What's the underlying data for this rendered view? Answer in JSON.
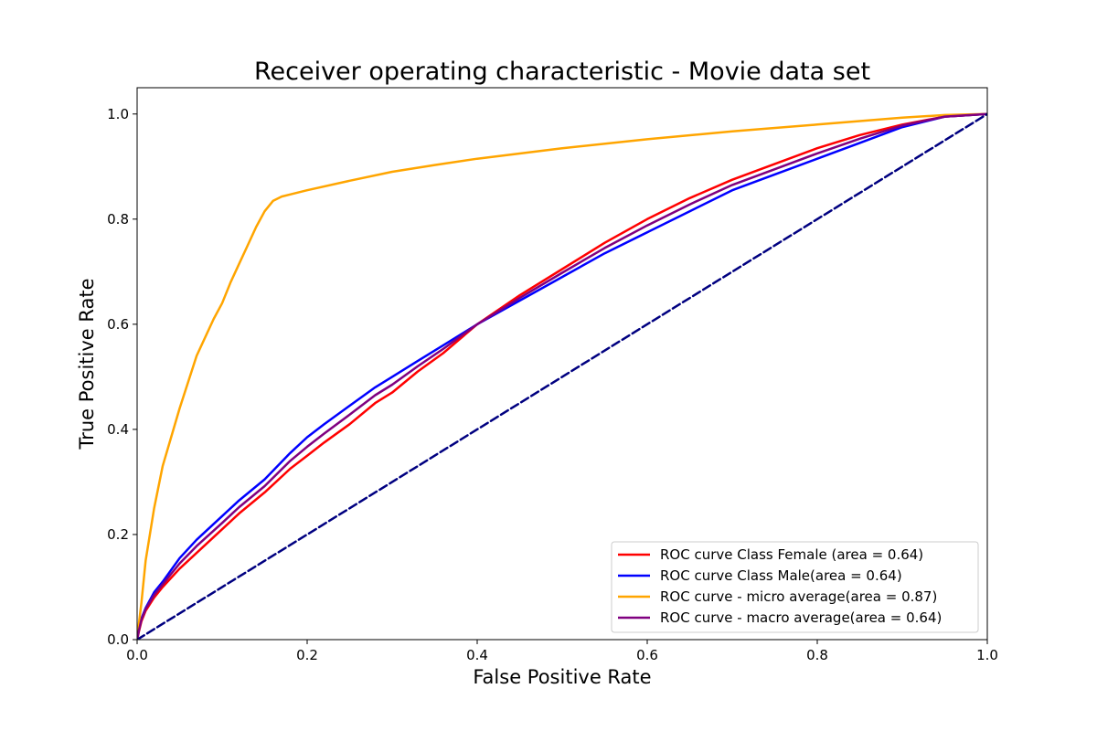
{
  "chart_data": {
    "type": "line",
    "title": "Receiver operating characteristic - Movie data set",
    "xlabel": "False Positive Rate",
    "ylabel": "True Positive Rate",
    "xlim": [
      0.0,
      1.0
    ],
    "ylim": [
      0.0,
      1.05
    ],
    "xticks": [
      0.0,
      0.2,
      0.4,
      0.6,
      0.8,
      1.0
    ],
    "xtick_labels": [
      "0.0",
      "0.2",
      "0.4",
      "0.6",
      "0.8",
      "1.0"
    ],
    "yticks": [
      0.0,
      0.2,
      0.4,
      0.6,
      0.8,
      1.0
    ],
    "ytick_labels": [
      "0.0",
      "0.2",
      "0.4",
      "0.6",
      "0.8",
      "1.0"
    ],
    "grid": false,
    "legend_position": "lower-right",
    "series": [
      {
        "name": "ROC curve Class Female (area = 0.64)",
        "color": "#ff0000",
        "style": "solid",
        "x": [
          0.0,
          0.002,
          0.005,
          0.01,
          0.02,
          0.03,
          0.05,
          0.07,
          0.1,
          0.12,
          0.15,
          0.18,
          0.2,
          0.22,
          0.25,
          0.28,
          0.3,
          0.33,
          0.36,
          0.4,
          0.45,
          0.5,
          0.55,
          0.6,
          0.65,
          0.7,
          0.75,
          0.8,
          0.85,
          0.9,
          0.95,
          1.0
        ],
        "y": [
          0.0,
          0.015,
          0.035,
          0.055,
          0.08,
          0.1,
          0.135,
          0.165,
          0.21,
          0.24,
          0.28,
          0.325,
          0.35,
          0.375,
          0.41,
          0.45,
          0.47,
          0.51,
          0.545,
          0.6,
          0.655,
          0.705,
          0.755,
          0.8,
          0.84,
          0.875,
          0.905,
          0.935,
          0.96,
          0.98,
          0.995,
          1.0
        ]
      },
      {
        "name": "ROC curve Class Male(area = 0.64)",
        "color": "#0000ff",
        "style": "solid",
        "x": [
          0.0,
          0.002,
          0.005,
          0.01,
          0.02,
          0.03,
          0.05,
          0.07,
          0.1,
          0.12,
          0.15,
          0.18,
          0.2,
          0.22,
          0.25,
          0.28,
          0.3,
          0.33,
          0.36,
          0.4,
          0.45,
          0.5,
          0.55,
          0.6,
          0.65,
          0.7,
          0.75,
          0.8,
          0.85,
          0.9,
          0.95,
          1.0
        ],
        "y": [
          0.0,
          0.02,
          0.04,
          0.06,
          0.09,
          0.11,
          0.155,
          0.19,
          0.235,
          0.265,
          0.305,
          0.355,
          0.385,
          0.41,
          0.445,
          0.48,
          0.5,
          0.53,
          0.56,
          0.6,
          0.645,
          0.69,
          0.735,
          0.775,
          0.815,
          0.855,
          0.885,
          0.915,
          0.945,
          0.975,
          0.995,
          1.0
        ]
      },
      {
        "name": "ROC curve - micro average(area = 0.87)",
        "color": "#ffa500",
        "style": "solid",
        "x": [
          0.0,
          0.002,
          0.005,
          0.01,
          0.02,
          0.03,
          0.05,
          0.07,
          0.09,
          0.1,
          0.11,
          0.12,
          0.13,
          0.14,
          0.15,
          0.16,
          0.17,
          0.18,
          0.2,
          0.25,
          0.3,
          0.35,
          0.4,
          0.5,
          0.6,
          0.7,
          0.8,
          0.9,
          0.95,
          1.0
        ],
        "y": [
          0.0,
          0.03,
          0.07,
          0.15,
          0.25,
          0.33,
          0.44,
          0.54,
          0.61,
          0.64,
          0.68,
          0.715,
          0.75,
          0.785,
          0.815,
          0.835,
          0.843,
          0.847,
          0.855,
          0.873,
          0.89,
          0.903,
          0.915,
          0.935,
          0.952,
          0.967,
          0.98,
          0.993,
          0.998,
          1.0
        ]
      },
      {
        "name": "ROC curve - macro average(area = 0.64)",
        "color": "#800080",
        "style": "solid",
        "x": [
          0.0,
          0.002,
          0.005,
          0.01,
          0.02,
          0.03,
          0.05,
          0.07,
          0.1,
          0.12,
          0.15,
          0.18,
          0.2,
          0.22,
          0.25,
          0.28,
          0.3,
          0.33,
          0.36,
          0.4,
          0.45,
          0.5,
          0.55,
          0.6,
          0.65,
          0.7,
          0.75,
          0.8,
          0.85,
          0.9,
          0.95,
          1.0
        ],
        "y": [
          0.0,
          0.017,
          0.038,
          0.058,
          0.085,
          0.105,
          0.145,
          0.178,
          0.222,
          0.252,
          0.292,
          0.34,
          0.367,
          0.392,
          0.428,
          0.465,
          0.485,
          0.52,
          0.553,
          0.6,
          0.65,
          0.698,
          0.745,
          0.788,
          0.828,
          0.865,
          0.895,
          0.925,
          0.953,
          0.978,
          0.995,
          1.0
        ]
      },
      {
        "name": "",
        "color": "#000080",
        "style": "dashed",
        "x": [
          0.0,
          1.0
        ],
        "y": [
          0.0,
          1.0
        ]
      }
    ]
  }
}
